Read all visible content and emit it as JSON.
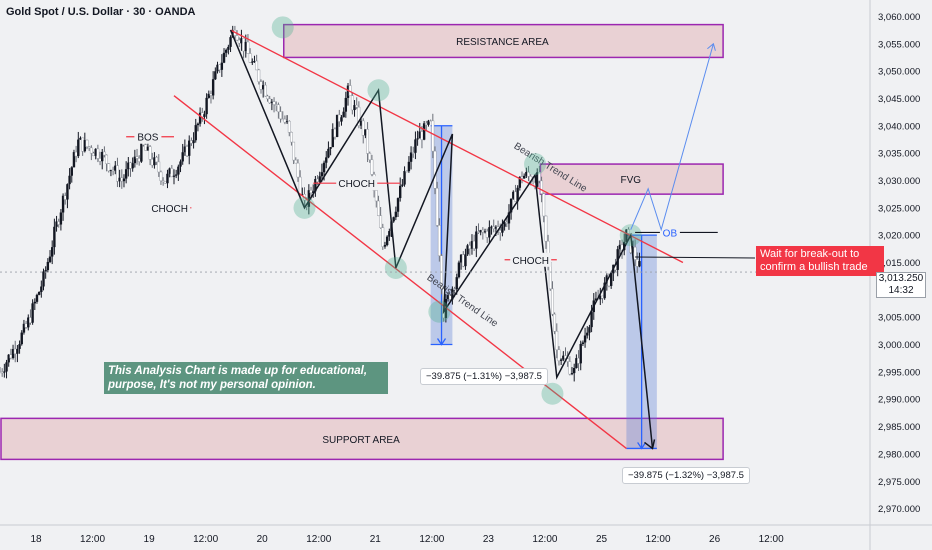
{
  "chart_data": {
    "type": "candlestick",
    "title": "Gold Spot / U.S. Dollar · 30 · OANDA",
    "x_tick_labels": [
      "18",
      "12:00",
      "19",
      "12:00",
      "20",
      "12:00",
      "21",
      "12:00",
      "23",
      "12:00",
      "25",
      "12:00",
      "26",
      "12:00"
    ],
    "x_range_hours": [
      0,
      200
    ],
    "x_tick_positions_hours": [
      0,
      13,
      26,
      39,
      52,
      65,
      78,
      91,
      104,
      117,
      130,
      143,
      156,
      169
    ],
    "y_tick_labels": [
      "3,060.000",
      "3,055.000",
      "3,050.000",
      "3,045.000",
      "3,040.000",
      "3,035.000",
      "3,030.000",
      "3,025.000",
      "3,020.000",
      "3,015.000",
      "3,005.000",
      "3,000.000",
      "2,995.000",
      "2,990.000",
      "2,985.000",
      "2,980.000",
      "2,975.000",
      "2,970.000"
    ],
    "ylim": [
      2967,
      3063
    ],
    "last_price": "3,013.250",
    "countdown": "14:32",
    "price_path": [
      {
        "x": 0,
        "y": 2995
      },
      {
        "x": 6,
        "y": 3003
      },
      {
        "x": 10,
        "y": 3012
      },
      {
        "x": 14,
        "y": 3025
      },
      {
        "x": 18,
        "y": 3037
      },
      {
        "x": 23,
        "y": 3035
      },
      {
        "x": 28,
        "y": 3030
      },
      {
        "x": 33,
        "y": 3036
      },
      {
        "x": 38,
        "y": 3030
      },
      {
        "x": 42,
        "y": 3034
      },
      {
        "x": 46,
        "y": 3041
      },
      {
        "x": 50,
        "y": 3050
      },
      {
        "x": 54,
        "y": 3058
      },
      {
        "x": 60,
        "y": 3048
      },
      {
        "x": 66,
        "y": 3040
      },
      {
        "x": 70,
        "y": 3025
      },
      {
        "x": 75,
        "y": 3035
      },
      {
        "x": 80,
        "y": 3046
      },
      {
        "x": 84,
        "y": 3038
      },
      {
        "x": 88,
        "y": 3018
      },
      {
        "x": 92,
        "y": 3028
      },
      {
        "x": 96,
        "y": 3038
      },
      {
        "x": 99,
        "y": 3040
      },
      {
        "x": 102,
        "y": 3006
      },
      {
        "x": 106,
        "y": 3015
      },
      {
        "x": 110,
        "y": 3020
      },
      {
        "x": 116,
        "y": 3022
      },
      {
        "x": 120,
        "y": 3031
      },
      {
        "x": 124,
        "y": 3030
      },
      {
        "x": 128,
        "y": 2999
      },
      {
        "x": 132,
        "y": 2995
      },
      {
        "x": 136,
        "y": 3006
      },
      {
        "x": 140,
        "y": 3012
      },
      {
        "x": 144,
        "y": 3020
      },
      {
        "x": 147,
        "y": 3014
      }
    ],
    "zones": [
      {
        "label": "RESISTANCE AREA",
        "x0": 65,
        "x1": 166,
        "y0": 3052.5,
        "y1": 3058.5
      },
      {
        "label": "FVG",
        "x0": 124,
        "x1": 166,
        "y0": 3027.5,
        "y1": 3033
      },
      {
        "label": "SUPPORT AREA",
        "x0": 0,
        "x1": 166,
        "y0": 2979,
        "y1": 2986.5
      }
    ],
    "trend_lines": [
      {
        "label": "Bearish Trend Line",
        "x0": 53,
        "y0": 3057.5,
        "x1": 157,
        "y1": 3015
      },
      {
        "label": "Bearish Trend Line",
        "x0": 40,
        "y0": 3045.5,
        "x1": 144,
        "y1": 2981
      }
    ],
    "swing_path": [
      {
        "x": 53,
        "y": 3057.5
      },
      {
        "x": 70,
        "y": 3025
      },
      {
        "x": 87,
        "y": 3046.5
      },
      {
        "x": 91,
        "y": 3014
      },
      {
        "x": 104,
        "y": 3038.5
      },
      {
        "x": 102,
        "y": 3006
      },
      {
        "x": 123,
        "y": 3031
      },
      {
        "x": 128,
        "y": 2994
      },
      {
        "x": 145,
        "y": 3020
      },
      {
        "x": 150,
        "y": 2981
      }
    ],
    "structure_labels": [
      {
        "text": "BOS",
        "x": 34,
        "y": 3038,
        "line_x0": 29,
        "line_x1": 40
      },
      {
        "text": "CHOCH",
        "x": 39,
        "y": 3025,
        "line_x0": 35,
        "line_x1": 44
      },
      {
        "text": "CHOCH",
        "x": 82,
        "y": 3029.5,
        "line_x0": 72,
        "line_x1": 92
      },
      {
        "text": "CHOCH",
        "x": 122,
        "y": 3015.5,
        "line_x0": 116,
        "line_x1": 128
      },
      {
        "text": "OB",
        "x": 154,
        "y": 3020.5,
        "line_x0": 146,
        "line_x1": 165
      }
    ],
    "highlight_points": [
      {
        "x": 65,
        "y": 3058
      },
      {
        "x": 70,
        "y": 3025
      },
      {
        "x": 87,
        "y": 3046.5
      },
      {
        "x": 91,
        "y": 3014
      },
      {
        "x": 101,
        "y": 3006
      },
      {
        "x": 123,
        "y": 3033
      },
      {
        "x": 127,
        "y": 2991
      },
      {
        "x": 145,
        "y": 3020
      }
    ],
    "measurements": [
      {
        "text": "−39.875 (−1.31%) −3,987.5",
        "x0": 99,
        "x1": 104,
        "y0": 3000,
        "y1": 3040
      },
      {
        "text": "−39.875 (−1.32%) −3,987.5",
        "x0": 144,
        "x1": 151,
        "y0": 2981,
        "y1": 3020
      }
    ],
    "projection": [
      {
        "x": 145,
        "y": 3021
      },
      {
        "x": 149,
        "y": 3028.5
      },
      {
        "x": 152,
        "y": 3021
      },
      {
        "x": 164,
        "y": 3055
      }
    ],
    "annotation_note": "This Analysis Chart is made up for educational, purpose, It's not my personal opinion.",
    "callout": "Wait for break-out to confirm a bullish trade",
    "colors": {
      "zone_fill": "#e8cdd0",
      "zone_border": "#9c27b0",
      "trend_line": "#f23645",
      "swing": "#131722",
      "highlight": "#4caf8f",
      "measure": "#2962ff",
      "callout_bg": "#f23645",
      "note_bg": "#5d9580"
    }
  }
}
